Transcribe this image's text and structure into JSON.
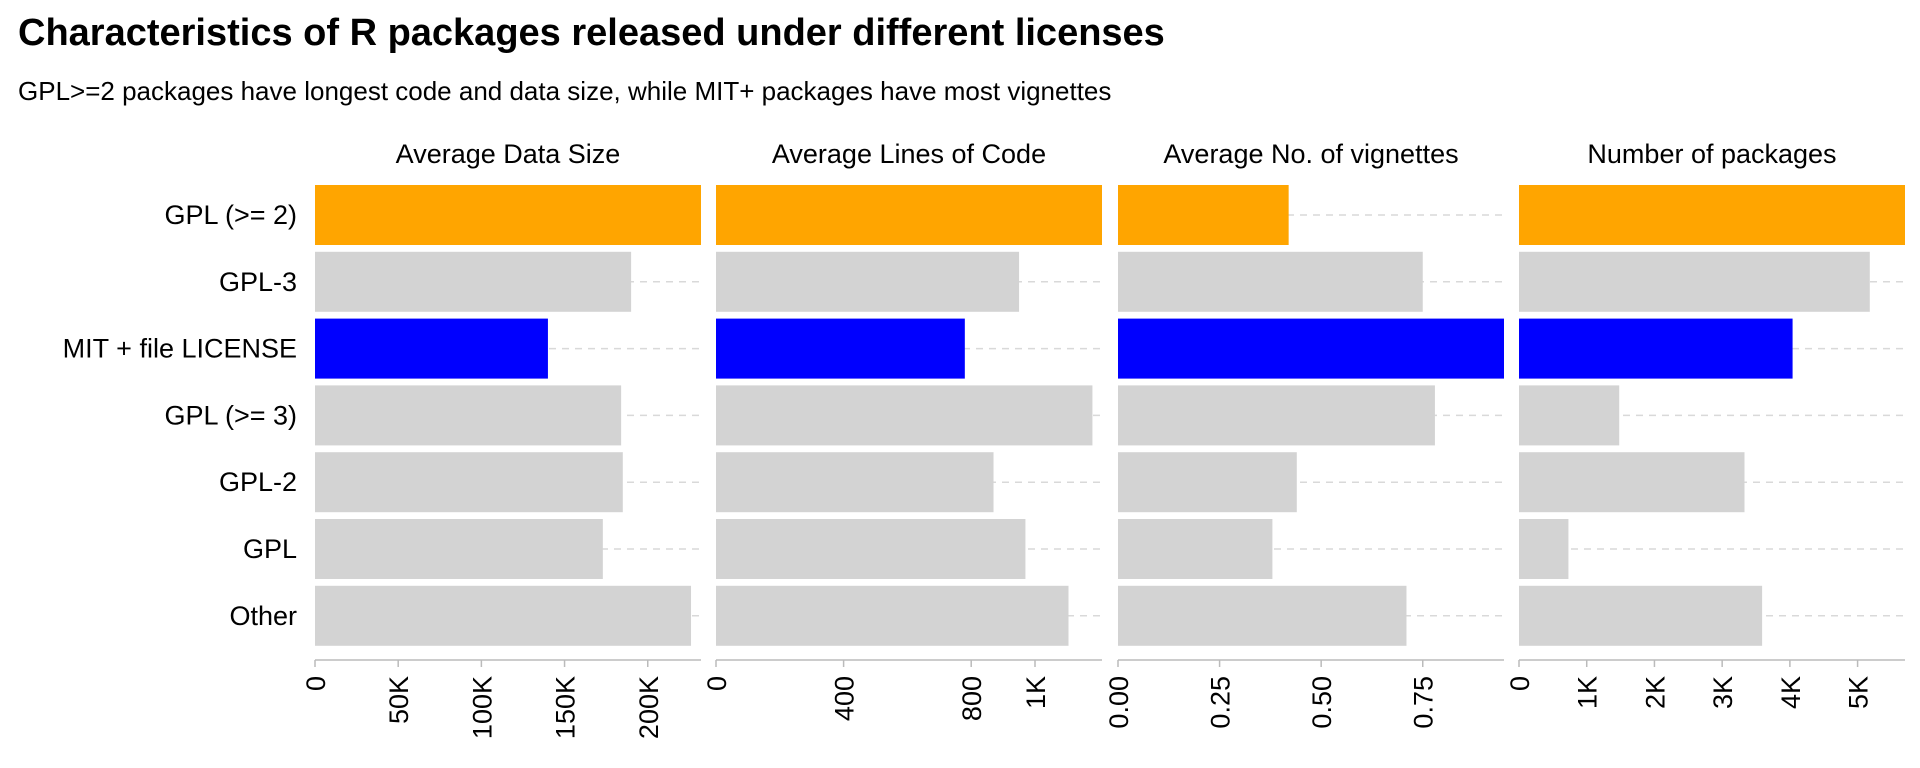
{
  "chart_data": {
    "type": "bar",
    "title": "Characteristics of R packages released under different licenses",
    "subtitle": "GPL>=2 packages have longest code and data size, while MIT+ packages have most vignettes",
    "categories": [
      "GPL (>= 2)",
      "GPL-3",
      "MIT + file LICENSE",
      "GPL (>= 3)",
      "GPL-2",
      "GPL",
      "Other"
    ],
    "colors": {
      "highlight_top": "#FFA500",
      "highlight_mit": "#0000FF",
      "default": "#D3D3D3",
      "gridline": "#D9D9D9",
      "axis": "#BBBBBB"
    },
    "bar_colors": [
      "#FFA500",
      "#D3D3D3",
      "#0000FF",
      "#D3D3D3",
      "#D3D3D3",
      "#D3D3D3",
      "#D3D3D3"
    ],
    "panels": [
      {
        "title": "Average Data Size",
        "xlim": [
          0,
          232000
        ],
        "ticks": [
          0,
          50000,
          100000,
          150000,
          200000
        ],
        "tick_labels": [
          "0",
          "50K",
          "100K",
          "150K",
          "200K"
        ],
        "values": [
          232000,
          190000,
          140000,
          184000,
          185000,
          173000,
          226000
        ]
      },
      {
        "title": "Average Lines of Code",
        "xlim": [
          0,
          1210
        ],
        "ticks": [
          0,
          400,
          800,
          1000
        ],
        "tick_labels": [
          "0",
          "400",
          "800",
          "1K"
        ],
        "values": [
          1210,
          950,
          780,
          1180,
          870,
          970,
          1105
        ]
      },
      {
        "title": "Average No. of vignettes",
        "xlim": [
          0,
          0.95
        ],
        "ticks": [
          0,
          0.25,
          0.5,
          0.75
        ],
        "tick_labels": [
          "0.00",
          "0.25",
          "0.50",
          "0.75"
        ],
        "values": [
          0.42,
          0.75,
          0.95,
          0.78,
          0.44,
          0.38,
          0.71
        ]
      },
      {
        "title": "Number of packages",
        "xlim": [
          0,
          5700
        ],
        "ticks": [
          0,
          1000,
          2000,
          3000,
          4000,
          5000
        ],
        "tick_labels": [
          "0",
          "1K",
          "2K",
          "3K",
          "4K",
          "5K"
        ],
        "values": [
          5700,
          5180,
          4040,
          1480,
          3330,
          730,
          3590
        ]
      }
    ]
  }
}
